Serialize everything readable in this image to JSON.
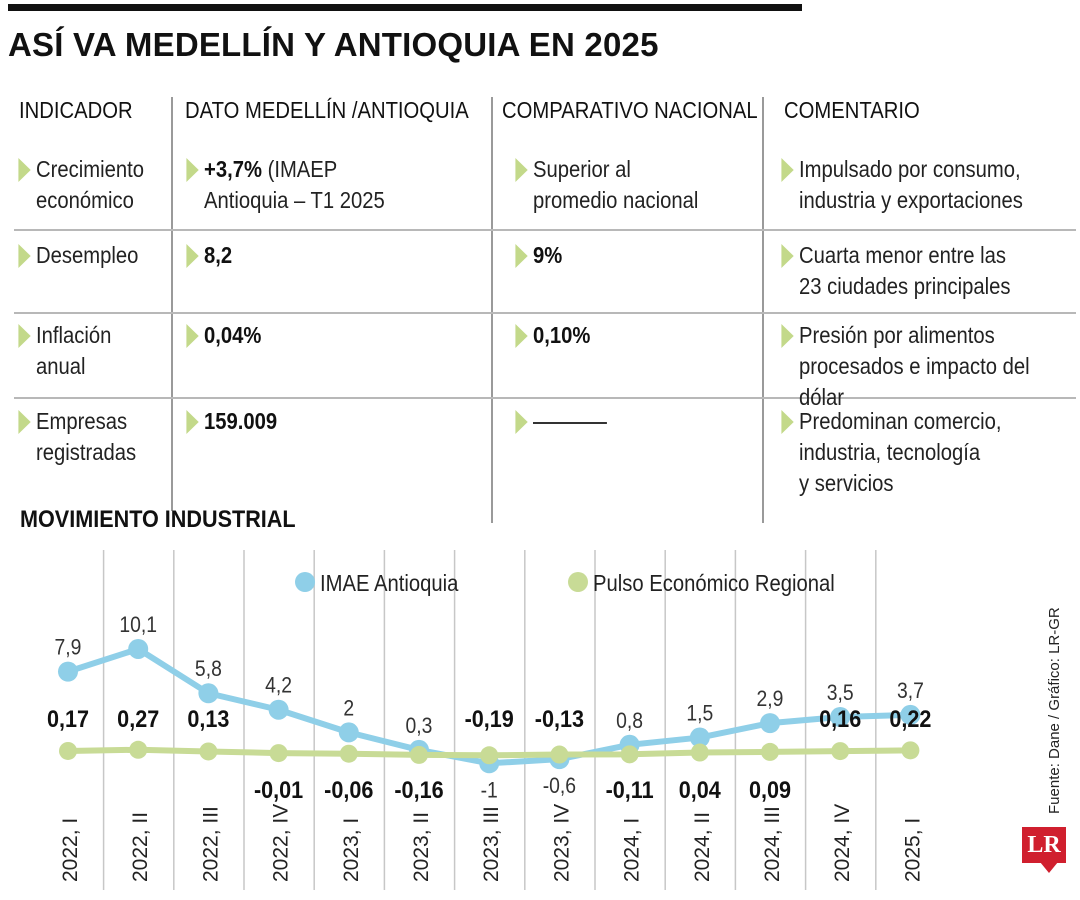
{
  "page": {
    "title": "ASÍ VA MEDELLÍN Y ANTIOQUIA EN 2025"
  },
  "table": {
    "headers": [
      "INDICADOR",
      "DATO MEDELLÍN /ANTIOQUIA",
      "COMPARATIVO NACIONAL",
      "COMENTARIO"
    ],
    "rows": [
      {
        "indicator_lines": [
          "Crecimiento",
          "económico"
        ],
        "dato_bold": "+3,7%",
        "dato_rest": " (IMAEP",
        "dato_line2": "Antioquia – T1 2025",
        "nacional_lines": [
          "Superior al",
          "promedio nacional"
        ],
        "nacional_bold": "",
        "comment_lines": [
          "Impulsado por consumo,",
          "industria y exportaciones"
        ]
      },
      {
        "indicator_lines": [
          "Desempleo"
        ],
        "dato_bold": "8,2",
        "dato_rest": "",
        "dato_line2": "",
        "nacional_lines": [],
        "nacional_bold": "9%",
        "comment_lines": [
          "Cuarta menor entre las",
          "23 ciudades principales"
        ]
      },
      {
        "indicator_lines": [
          "Inflación",
          "anual"
        ],
        "dato_bold": "0,04%",
        "dato_rest": "",
        "dato_line2": "",
        "nacional_lines": [],
        "nacional_bold": "0,10%",
        "comment_lines": [
          "Presión por alimentos",
          "procesados e impacto del dólar"
        ]
      },
      {
        "indicator_lines": [
          "Empresas",
          "registradas"
        ],
        "dato_bold": "159.009",
        "dato_rest": "",
        "dato_line2": "",
        "nacional_lines": [],
        "nacional_bold": "",
        "comment_lines": [
          "Predominan comercio,",
          "industria, tecnología",
          "y servicios"
        ]
      }
    ]
  },
  "chart_data": {
    "type": "line",
    "title": "MOVIMIENTO INDUSTRIAL",
    "categories": [
      "2022, I",
      "2022, II",
      "2022, III",
      "2022, IV",
      "2023, I",
      "2023, II",
      "2023, III",
      "2023, IV",
      "2024, I",
      "2024, II",
      "2024, III",
      "2024, IV",
      "2025, I"
    ],
    "series": [
      {
        "name": "IMAE Antioquia",
        "color": "#8fcfe8",
        "values": [
          7.9,
          10.1,
          5.8,
          4.2,
          2,
          0.3,
          -1,
          -0.6,
          0.8,
          1.5,
          2.9,
          3.5,
          3.7
        ],
        "labels": [
          "7,9",
          "10,1",
          "5,8",
          "4,2",
          "2",
          "0,3",
          "-1",
          "-0,6",
          "0,8",
          "1,5",
          "2,9",
          "3,5",
          "3,7"
        ]
      },
      {
        "name": "Pulso Económico Regional",
        "color": "#c8db96",
        "values": [
          0.17,
          0.27,
          0.13,
          -0.01,
          -0.06,
          -0.16,
          -0.19,
          -0.13,
          -0.11,
          0.04,
          0.09,
          0.16,
          0.22
        ],
        "labels": [
          "0,17",
          "0,27",
          "0,13",
          "-0,01",
          "-0,06",
          "-0,16",
          "-0,19",
          "-0,13",
          "-0,11",
          "0,04",
          "0,09",
          "0,16",
          "0,22"
        ]
      }
    ],
    "legend_position": "top"
  },
  "source": "Fuente: Dane / Gráfico: LR-GR",
  "logo": "LR"
}
